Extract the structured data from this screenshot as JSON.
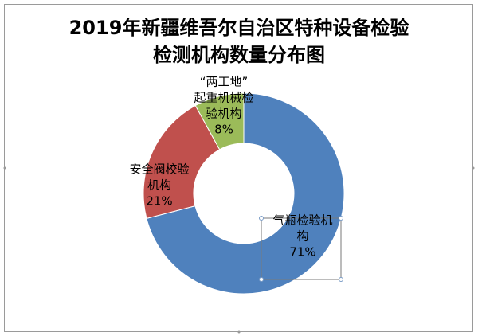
{
  "chart_data": {
    "type": "pie",
    "title_lines": [
      "2019年新疆维吾尔自治区特种设备检验",
      "检测机构数量分布图"
    ],
    "hole": true,
    "slices": [
      {
        "label_lines": [
          "气瓶检验机",
          "构"
        ],
        "percent_label": "71%",
        "value": 71,
        "color": "#4f81bd"
      },
      {
        "label_lines": [
          "安全阀校验",
          "机构"
        ],
        "percent_label": "21%",
        "value": 21,
        "color": "#c0504d"
      },
      {
        "label_lines": [
          "“两工地”",
          "起重机械检",
          "验机构"
        ],
        "percent_label": "8%",
        "value": 8,
        "color": "#9bbb59"
      }
    ],
    "legend": "none"
  }
}
